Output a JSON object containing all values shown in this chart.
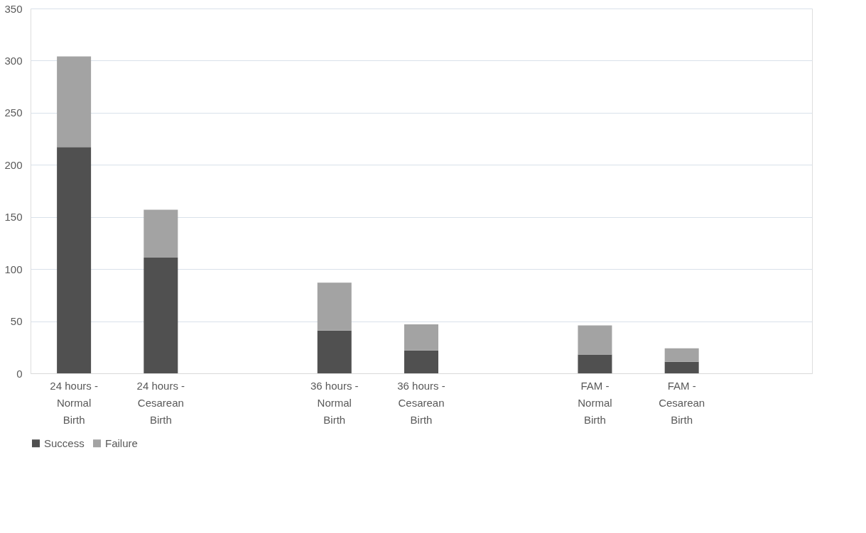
{
  "chart_data": {
    "type": "bar",
    "stacked": true,
    "categories": [
      "24 hours - Normal Birth",
      "24 hours - Cesarean Birth",
      null,
      "36 hours - Normal Birth",
      "36 hours - Cesarean Birth",
      null,
      "FAM - Normal Birth",
      "FAM - Cesarean Birth",
      null
    ],
    "series": [
      {
        "name": "Success",
        "color": "#505050",
        "values": [
          217,
          111,
          null,
          41,
          22,
          null,
          18,
          11,
          null
        ]
      },
      {
        "name": "Failure",
        "color": "#a3a3a3",
        "values": [
          87,
          46,
          null,
          46,
          25,
          null,
          28,
          13,
          null
        ]
      }
    ],
    "ylim": [
      0,
      350
    ],
    "yticks": [
      0,
      50,
      100,
      150,
      200,
      250,
      300,
      350
    ],
    "grid": "y",
    "legend": "bottom"
  }
}
